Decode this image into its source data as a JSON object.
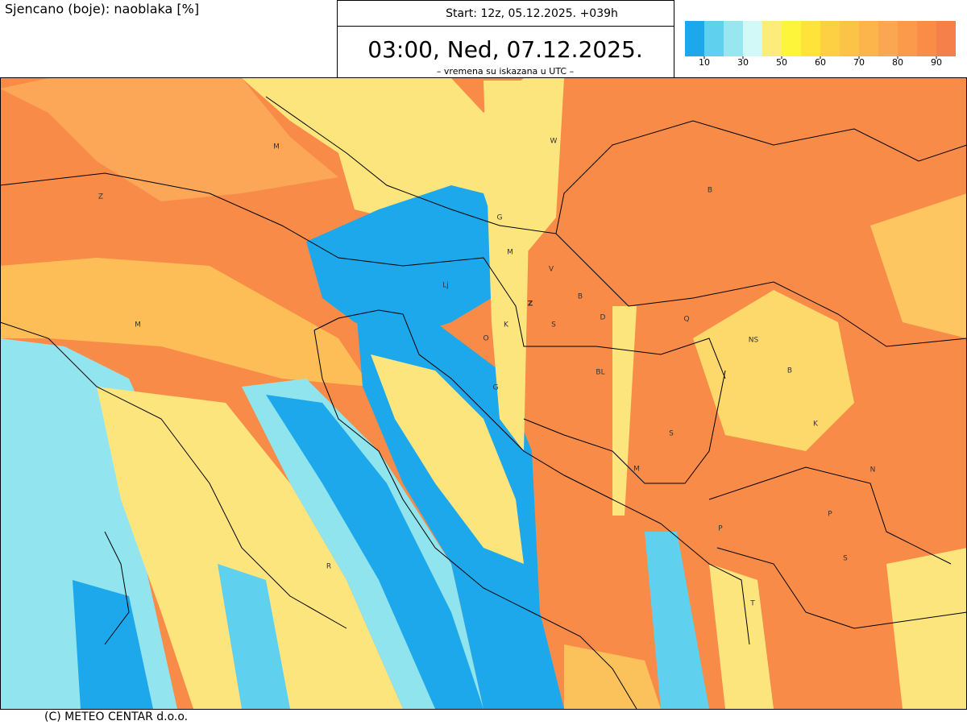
{
  "header": {
    "field": "Sjencano (boje): naoblaka [%]",
    "start": "Start: 12z, 05.12.2025.   +039h",
    "valid_time": "03:00, Ned, 07.12.2025.",
    "note": "– vremena su iskazana u UTC –"
  },
  "legend": {
    "colors": [
      "#1ea8ec",
      "#5fd0ee",
      "#97e6f0",
      "#d2f8f8",
      "#fdec7c",
      "#fdf53a",
      "#fde33a",
      "#fdd043",
      "#fcc447",
      "#fbb54a",
      "#fba650",
      "#fa9a4a",
      "#f98d48",
      "#f6804a"
    ],
    "ticks": [
      10,
      30,
      50,
      60,
      70,
      80,
      90
    ]
  },
  "map": {
    "labels": [
      "M",
      "W",
      "Z",
      "B",
      "G",
      "M",
      "V",
      "Lj",
      "Z",
      "B",
      "D",
      "S",
      "K",
      "Q",
      "O",
      "M",
      "NS",
      "BL",
      "B",
      "G",
      "K",
      "S",
      "M",
      "N",
      "P",
      "P",
      "S",
      "R",
      "T"
    ]
  },
  "footer": {
    "copyright": "(C) METEO CENTAR d.o.o."
  }
}
